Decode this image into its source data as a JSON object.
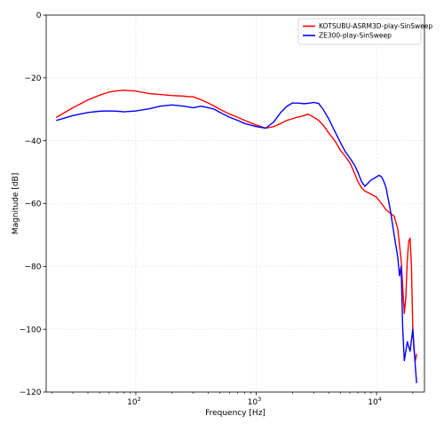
{
  "chart_data": {
    "type": "line",
    "title": "",
    "xlabel": "Frequency [Hz]",
    "ylabel": "Magnitude [dB]",
    "xscale": "log",
    "xlim": [
      18,
      25000
    ],
    "ylim": [
      -120,
      0
    ],
    "grid": true,
    "legend_position": "top-right",
    "x_ticks": [
      {
        "value": 100,
        "base": "10",
        "exp": "2"
      },
      {
        "value": 1000,
        "base": "10",
        "exp": "3"
      },
      {
        "value": 10000,
        "base": "10",
        "exp": "4"
      }
    ],
    "y_ticks": [
      0,
      -20,
      -40,
      -60,
      -80,
      -100,
      -120
    ],
    "series": [
      {
        "name": "KOTSUBU-ASRM3D-play-SinSweep",
        "color": "#ff0000",
        "x": [
          22,
          30,
          40,
          50,
          60,
          70,
          80,
          100,
          130,
          160,
          200,
          250,
          280,
          300,
          350,
          400,
          450,
          500,
          600,
          700,
          800,
          1000,
          1200,
          1400,
          1600,
          1800,
          2000,
          2200,
          2500,
          2700,
          3000,
          3300,
          3600,
          4000,
          4500,
          5000,
          5500,
          6000,
          6500,
          7000,
          7500,
          8000,
          8500,
          9000,
          10000,
          11000,
          12000,
          13000,
          14000,
          15000,
          16000,
          17000,
          17500,
          18000,
          18500,
          19000,
          19500,
          20000,
          20500,
          21000,
          21500
        ],
        "y": [
          -32.5,
          -29.5,
          -27,
          -25.5,
          -24.5,
          -24.1,
          -23.9,
          -24.2,
          -25,
          -25.3,
          -25.6,
          -25.8,
          -26,
          -26,
          -27,
          -28,
          -29,
          -30,
          -31.5,
          -32.5,
          -33.5,
          -35,
          -36,
          -35.5,
          -34.5,
          -33.5,
          -33,
          -32.5,
          -32,
          -31.5,
          -32.5,
          -33.5,
          -35,
          -37.5,
          -40,
          -43,
          -45,
          -47,
          -50,
          -53,
          -55,
          -56,
          -56.5,
          -57,
          -58,
          -60,
          -62,
          -63,
          -64,
          -68,
          -78,
          -95,
          -90,
          -78,
          -72,
          -71,
          -80,
          -100,
          -107,
          -110,
          -108
        ]
      },
      {
        "name": "ZE300-play-SinSweep",
        "color": "#0000ff",
        "x": [
          22,
          30,
          40,
          50,
          60,
          70,
          80,
          100,
          130,
          160,
          200,
          250,
          300,
          350,
          400,
          450,
          500,
          600,
          700,
          800,
          1000,
          1200,
          1400,
          1600,
          1800,
          2000,
          2200,
          2500,
          2800,
          3000,
          3300,
          3600,
          4000,
          4500,
          5000,
          5500,
          6000,
          6500,
          7000,
          7500,
          8000,
          8500,
          9000,
          9500,
          10000,
          10500,
          11000,
          11500,
          12000,
          13000,
          14000,
          15000,
          15500,
          16000,
          16500,
          17000,
          18000,
          19000,
          20000,
          21000,
          21500
        ],
        "y": [
          -33.5,
          -32,
          -31,
          -30.6,
          -30.5,
          -30.6,
          -30.8,
          -30.5,
          -29.8,
          -29,
          -28.6,
          -29,
          -29.5,
          -29,
          -29.5,
          -30,
          -31,
          -32.5,
          -33.5,
          -34.5,
          -35.5,
          -36,
          -34,
          -31,
          -29,
          -28,
          -28,
          -28.2,
          -28,
          -27.8,
          -28.1,
          -30,
          -33,
          -37,
          -40.5,
          -43.5,
          -45.5,
          -47.5,
          -50,
          -53,
          -54.5,
          -53.5,
          -52.5,
          -52,
          -51.5,
          -51,
          -51.5,
          -53,
          -55,
          -62,
          -70,
          -77,
          -83,
          -80,
          -100,
          -110,
          -104,
          -107,
          -100,
          -112,
          -117
        ]
      }
    ]
  }
}
